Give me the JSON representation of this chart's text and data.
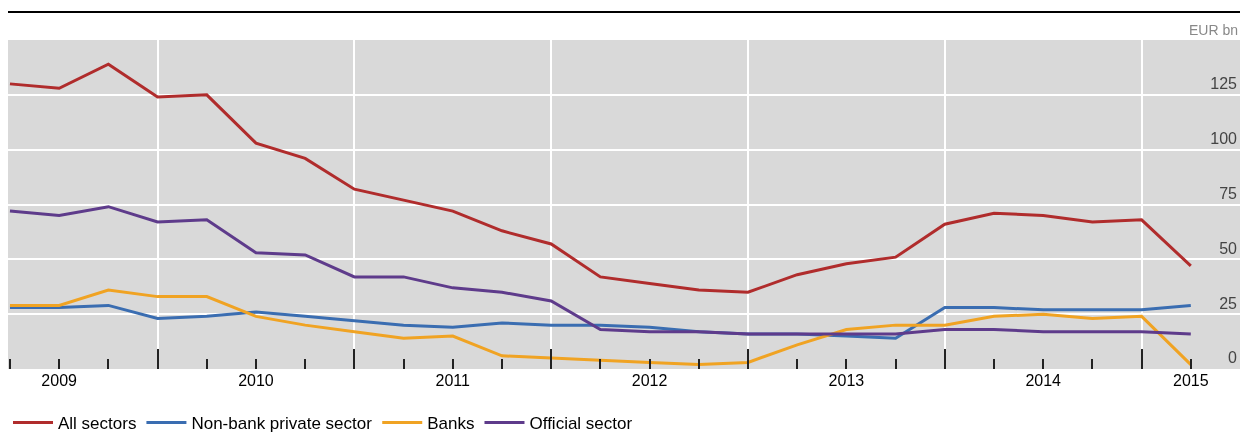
{
  "chart_data": {
    "type": "line",
    "ylabel": "EUR bn",
    "x": [
      2009.25,
      2009.5,
      2009.75,
      2010.0,
      2010.25,
      2010.5,
      2010.75,
      2011.0,
      2011.25,
      2011.5,
      2011.75,
      2012.0,
      2012.25,
      2012.5,
      2012.75,
      2013.0,
      2013.25,
      2013.5,
      2013.75,
      2014.0,
      2014.25,
      2014.5,
      2014.75,
      2015.0,
      2015.25
    ],
    "series": [
      {
        "name": "All sectors",
        "color": "#b02c2c",
        "values": [
          130,
          128,
          139,
          124,
          125,
          103,
          96,
          82,
          77,
          72,
          63,
          57,
          42,
          39,
          36,
          35,
          43,
          48,
          51,
          66,
          71,
          70,
          67,
          68,
          47
        ]
      },
      {
        "name": "Non-bank private sector",
        "color": "#3a6db1",
        "values": [
          28,
          28,
          29,
          23,
          24,
          26,
          24,
          22,
          20,
          19,
          21,
          20,
          20,
          19,
          17,
          16,
          16,
          15,
          14,
          28,
          28,
          27,
          27,
          27,
          29
        ]
      },
      {
        "name": "Banks",
        "color": "#f0a323",
        "values": [
          29,
          29,
          36,
          33,
          33,
          24,
          20,
          17,
          14,
          15,
          6,
          5,
          4,
          3,
          2,
          3,
          11,
          18,
          20,
          20,
          24,
          25,
          23,
          24,
          2
        ]
      },
      {
        "name": "Official sector",
        "color": "#5e3b8b",
        "values": [
          72,
          70,
          74,
          67,
          68,
          53,
          52,
          42,
          42,
          37,
          35,
          31,
          18,
          17,
          17,
          16,
          16,
          16,
          16,
          18,
          18,
          17,
          17,
          17,
          16
        ]
      }
    ],
    "xlim": [
      2009.24,
      2015.5
    ],
    "xticks": [
      {
        "value": 2009.5,
        "label": "2009"
      },
      {
        "value": 2010.5,
        "label": "2010"
      },
      {
        "value": 2011.5,
        "label": "2011"
      },
      {
        "value": 2012.5,
        "label": "2012"
      },
      {
        "value": 2013.5,
        "label": "2013"
      },
      {
        "value": 2014.5,
        "label": "2014"
      },
      {
        "value": 2015.25,
        "label": "2015"
      },
      {
        "value": 2010,
        "label": null
      },
      {
        "value": 2011,
        "label": null
      },
      {
        "value": 2012,
        "label": null
      },
      {
        "value": 2013,
        "label": null
      },
      {
        "value": 2014,
        "label": null
      },
      {
        "value": 2015,
        "label": null
      }
    ],
    "ylim": [
      0,
      150
    ],
    "yticks": [
      0,
      25,
      50,
      75,
      100,
      125
    ],
    "grid": true,
    "legend": "bottom",
    "marker": "none",
    "line_style": "solid"
  }
}
